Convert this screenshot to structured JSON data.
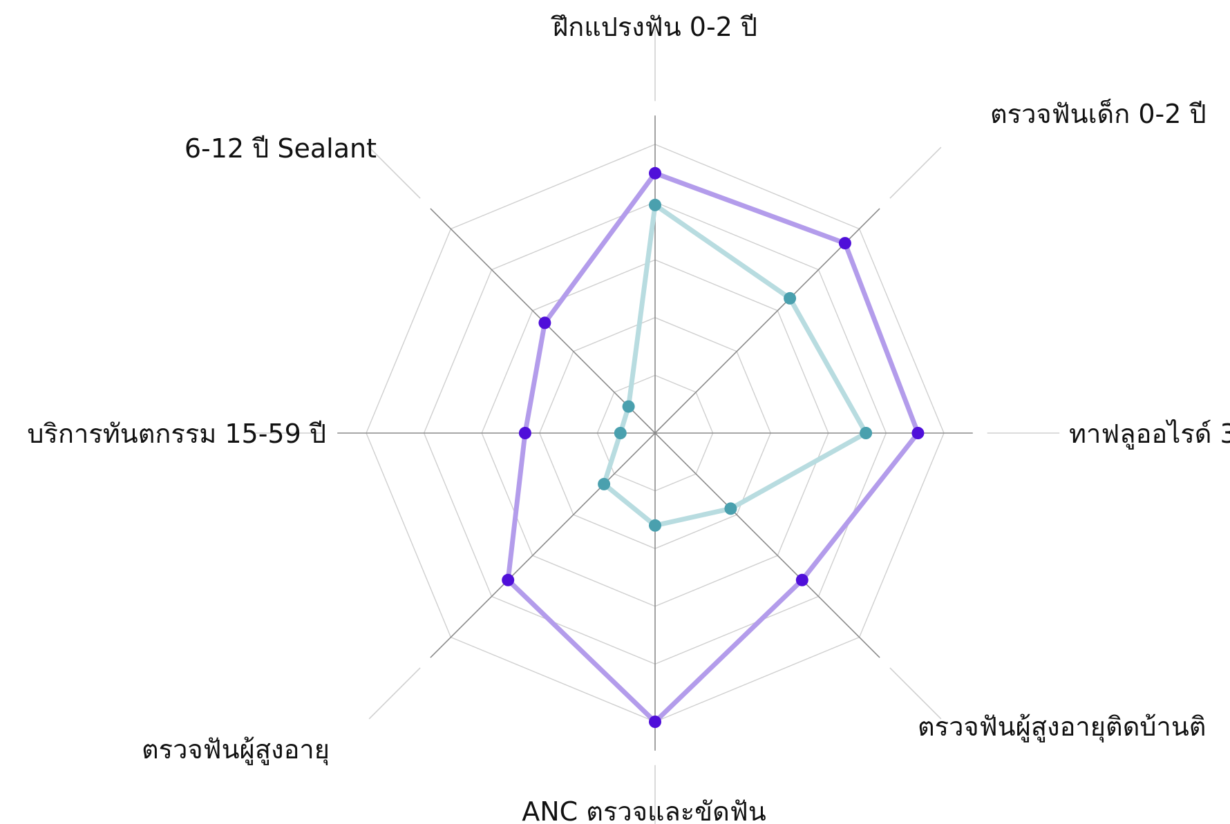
{
  "chart_data": {
    "type": "radar",
    "categories": [
      "ฝึกแปรงฟัน 0-2 ปี",
      "ตรวจฟันเด็ก 0-2 ปี",
      "ทาฟลูออไรด์ 3",
      "ตรวจฟันผู้สูงอายุติดบ้านติ",
      "ANC ตรวจและขัดฟัน",
      "ตรวจฟันผู้สูงอายุ",
      "บริการทันตกรรม 15-59 ปี",
      "6-12 ปี Sealant"
    ],
    "series": [
      {
        "values": [
          90,
          93,
          91,
          72,
          100,
          72,
          45,
          54
        ],
        "color": "#b39ceb",
        "marker_color": "#4f0fd9"
      },
      {
        "values": [
          79,
          66,
          73,
          37,
          32,
          25,
          12,
          13
        ],
        "color": "#b8dce0",
        "marker_color": "#4aa0ae"
      }
    ],
    "rlim": [
      0,
      100
    ],
    "rings": 5,
    "grid": true,
    "legend": "none"
  }
}
